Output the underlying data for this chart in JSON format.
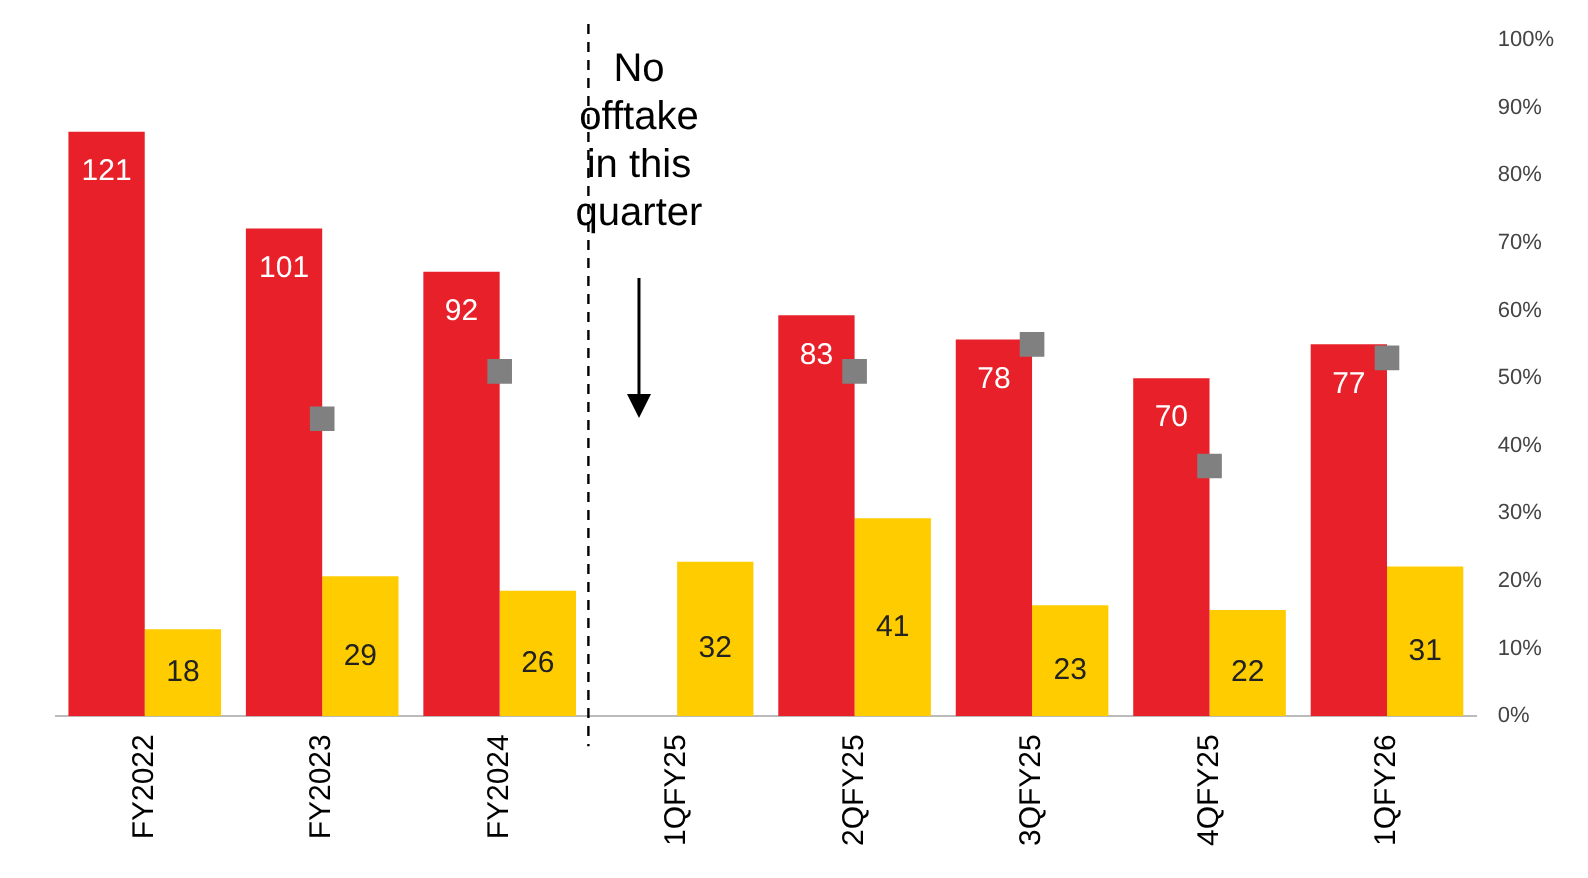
{
  "chart_data": {
    "type": "bar",
    "categories": [
      "FY2022",
      "FY2023",
      "FY2024",
      "1QFY25",
      "2QFY25",
      "3QFY25",
      "4QFY25",
      "1QFY26"
    ],
    "series": [
      {
        "color": "#e8202a",
        "values": [
          121,
          101,
          92,
          null,
          83,
          78,
          70,
          77
        ],
        "value_labels": [
          "121",
          "101",
          "92",
          null,
          "83",
          "78",
          "70",
          "77"
        ]
      },
      {
        "color": "#ffcc00",
        "values": [
          18,
          29,
          26,
          32,
          41,
          23,
          22,
          31
        ],
        "value_labels": [
          "18",
          "29",
          "26",
          "32",
          "41",
          "23",
          "22",
          "31"
        ]
      },
      {
        "type": "scatter",
        "axis": "y2",
        "marker": "square",
        "color": "#808080",
        "values": [
          null,
          44,
          51,
          null,
          51,
          55,
          37,
          53
        ]
      }
    ],
    "legend": false,
    "grid": false,
    "y2lim": [
      0,
      100
    ],
    "y2ticks": [
      {
        "value": 0,
        "label": "0%"
      },
      {
        "value": 10,
        "label": "10%"
      },
      {
        "value": 20,
        "label": "20%"
      },
      {
        "value": 30,
        "label": "30%"
      },
      {
        "value": 40,
        "label": "40%"
      },
      {
        "value": 50,
        "label": "50%"
      },
      {
        "value": 60,
        "label": "60%"
      },
      {
        "value": 70,
        "label": "70%"
      },
      {
        "value": 80,
        "label": "80%"
      },
      {
        "value": 90,
        "label": "90%"
      },
      {
        "value": 100,
        "label": "100%"
      }
    ],
    "annotations": [
      "No offtake in this quarter"
    ]
  }
}
